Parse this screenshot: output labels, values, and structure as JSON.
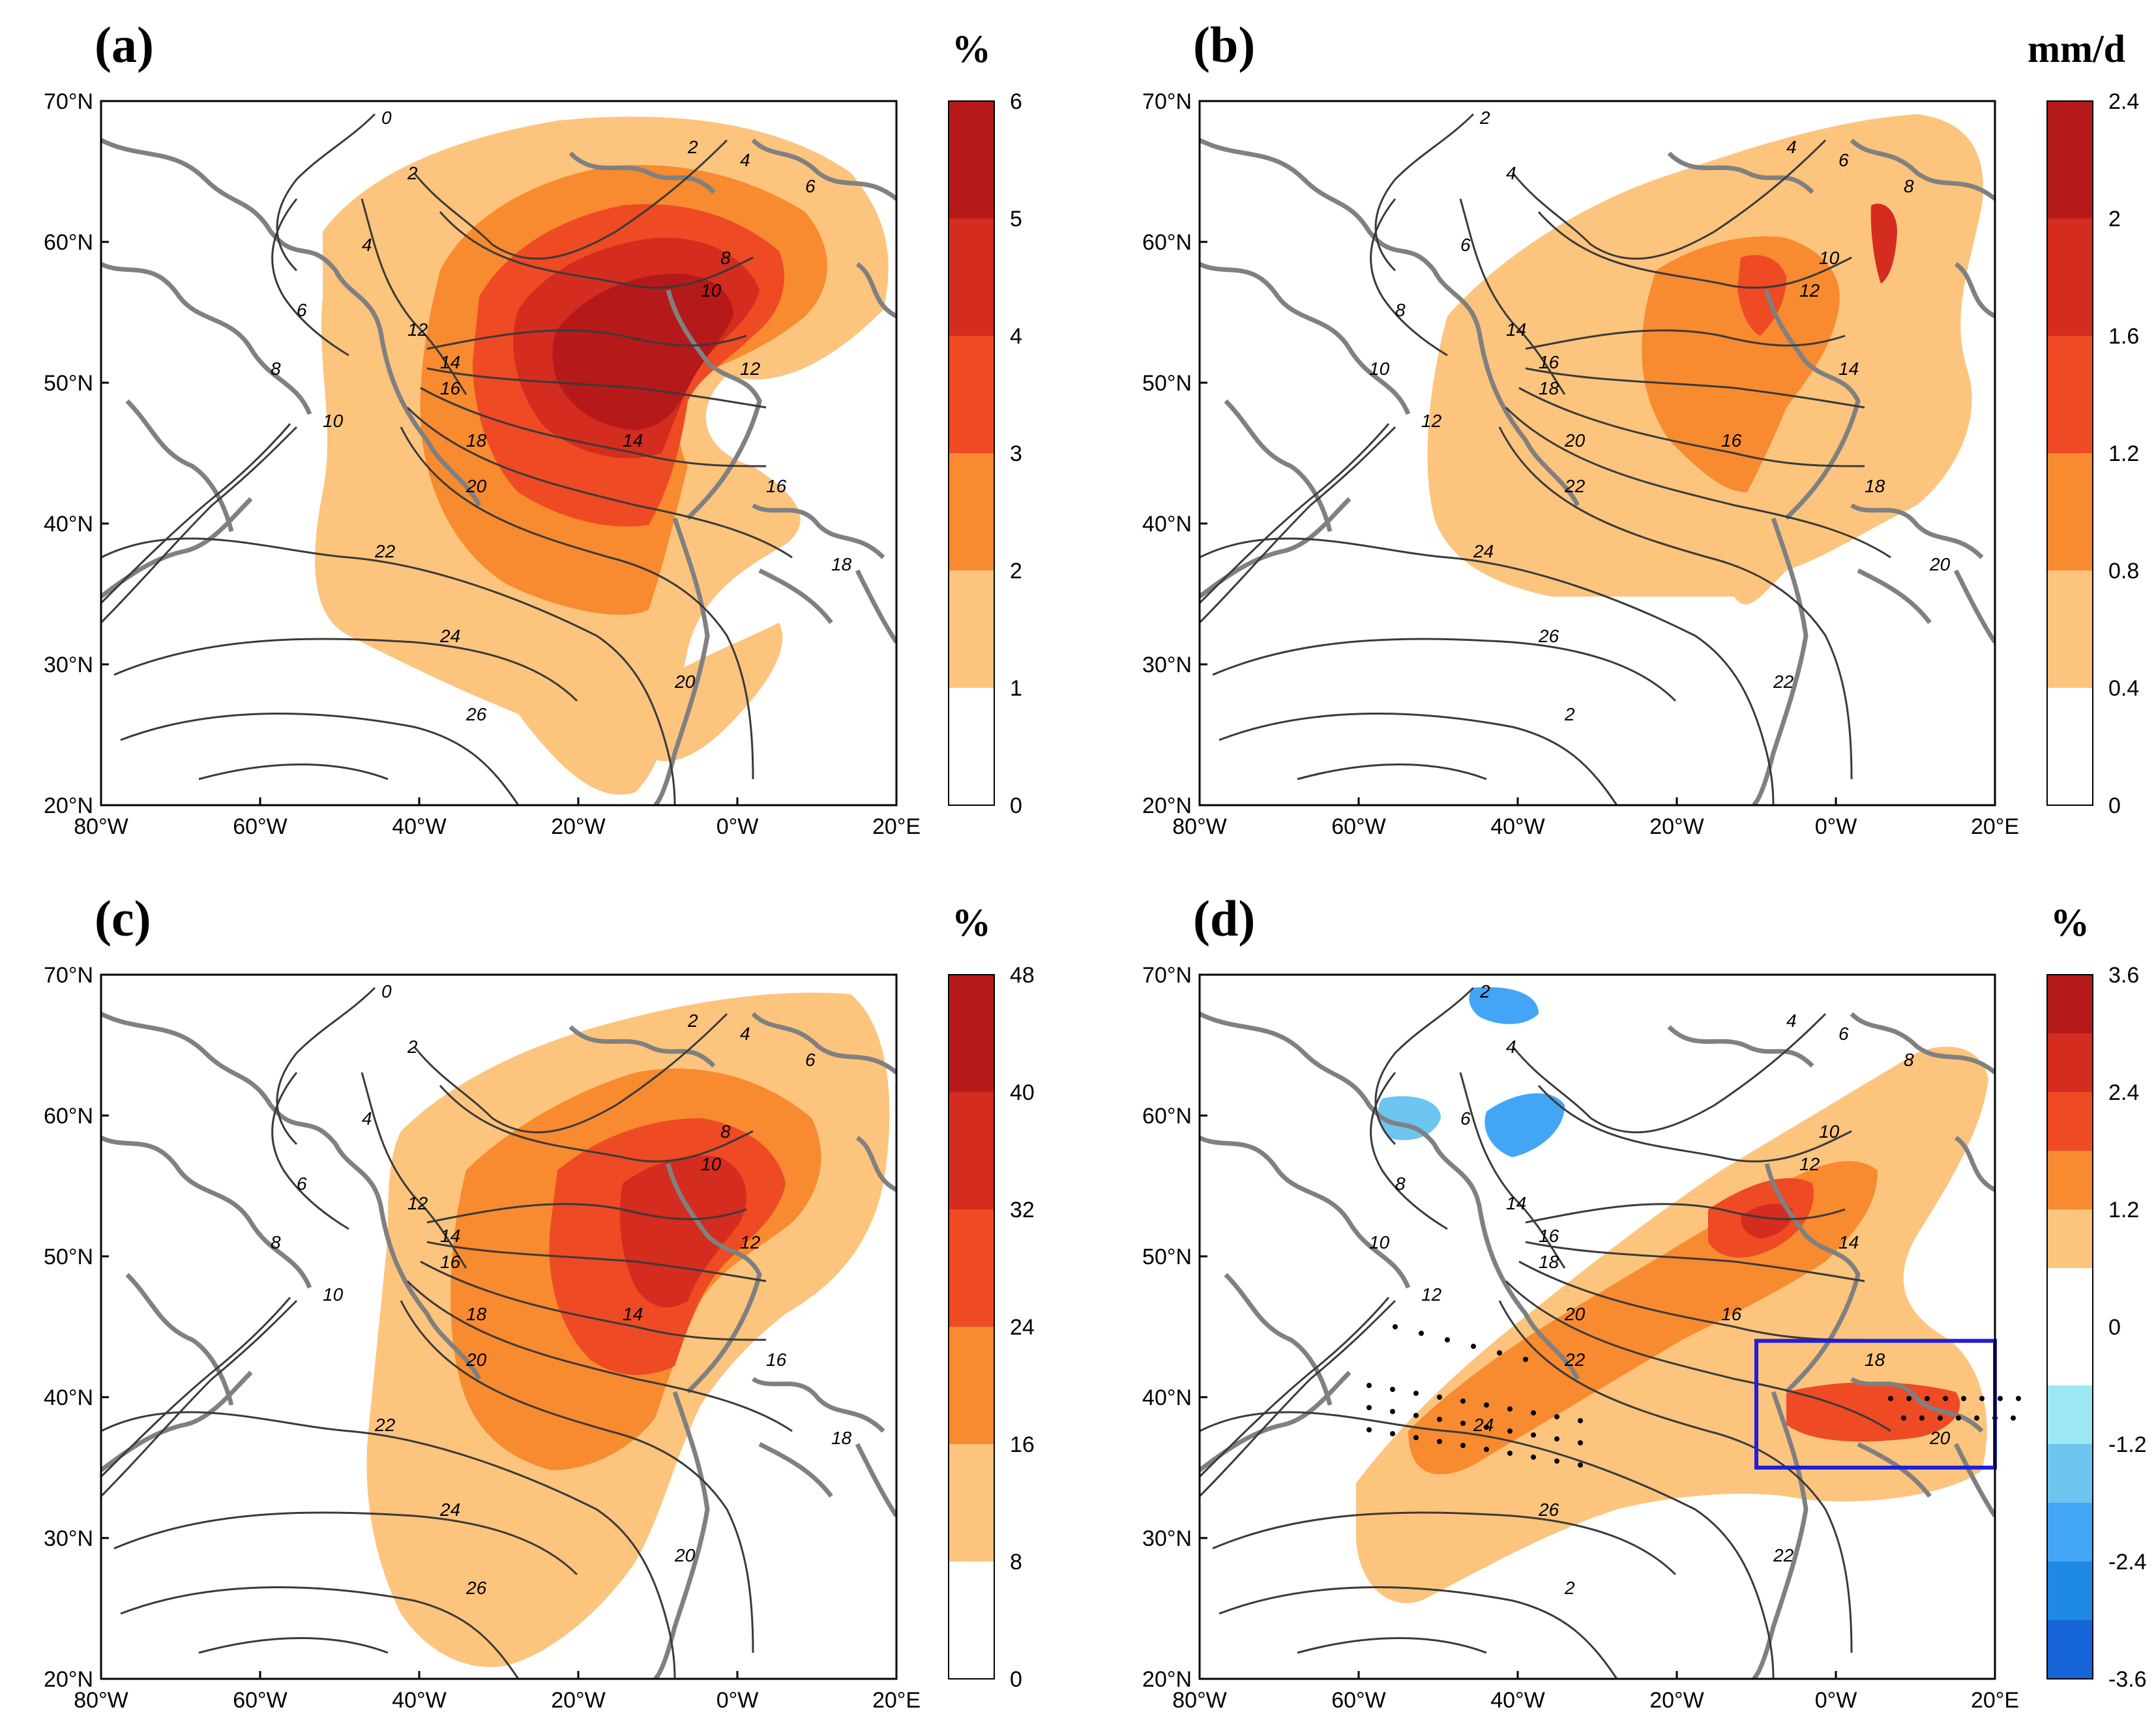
{
  "figure": {
    "panels": [
      {
        "id": "a",
        "label": "(a)",
        "unit": "%",
        "colorbar_ticks": [
          "0",
          "1",
          "2",
          "3",
          "4",
          "5",
          "6"
        ],
        "colorbar_colors": [
          "#ffffff",
          "#fdc47d",
          "#f88a2f",
          "#ee4a24",
          "#d42c1e",
          "#b5191a"
        ],
        "contour_labels": [
          "0",
          "2",
          "4",
          "6",
          "8",
          "10",
          "12",
          "14",
          "16",
          "18",
          "20",
          "22",
          "24",
          "26",
          "2",
          "4",
          "6",
          "8",
          "10",
          "12",
          "14",
          "16",
          "18",
          "20"
        ]
      },
      {
        "id": "b",
        "label": "(b)",
        "unit": "mm/d",
        "colorbar_ticks": [
          "0",
          "0.4",
          "0.8",
          "1.2",
          "1.6",
          "2",
          "2.4"
        ],
        "colorbar_colors": [
          "#ffffff",
          "#fdc47d",
          "#f88a2f",
          "#ee4a24",
          "#d42c1e",
          "#b5191a"
        ],
        "contour_labels": [
          "2",
          "4",
          "6",
          "8",
          "10",
          "12",
          "14",
          "16",
          "18",
          "20",
          "22",
          "24",
          "26",
          "2",
          "4",
          "6",
          "8",
          "10",
          "12",
          "14",
          "16",
          "18",
          "20",
          "22"
        ]
      },
      {
        "id": "c",
        "label": "(c)",
        "unit": "%",
        "colorbar_ticks": [
          "0",
          "8",
          "16",
          "24",
          "32",
          "40",
          "48"
        ],
        "colorbar_colors": [
          "#ffffff",
          "#fdc47d",
          "#f88a2f",
          "#ee4a24",
          "#d42c1e",
          "#b5191a"
        ],
        "contour_labels": [
          "0",
          "2",
          "4",
          "6",
          "8",
          "10",
          "12",
          "14",
          "16",
          "18",
          "20",
          "22",
          "24",
          "26",
          "2",
          "4",
          "6",
          "8",
          "10",
          "12",
          "14",
          "16",
          "18",
          "20"
        ]
      },
      {
        "id": "d",
        "label": "(d)",
        "unit": "%",
        "colorbar_ticks": [
          "-3.6",
          "-2.4",
          "-1.2",
          "0",
          "1.2",
          "2.4",
          "3.6"
        ],
        "colorbar_colors": [
          "#1565d8",
          "#1e88e5",
          "#42a5f5",
          "#6cc6f0",
          "#9be7f4",
          "#ffffff",
          "#ffffff",
          "#fdc47d",
          "#f88a2f",
          "#ee4a24",
          "#d42c1e",
          "#b5191a"
        ],
        "contour_labels": [
          "2",
          "4",
          "6",
          "8",
          "10",
          "12",
          "14",
          "16",
          "18",
          "20",
          "22",
          "24",
          "26",
          "2",
          "4",
          "6",
          "8",
          "10",
          "12",
          "14",
          "16",
          "18",
          "20",
          "22"
        ],
        "box_region": {
          "lon": [
            -10,
            20
          ],
          "lat": [
            35,
            44
          ],
          "color": "#1f1fd6"
        }
      }
    ],
    "x_tick_labels": [
      "80°W",
      "60°W",
      "40°W",
      "20°W",
      "0°W",
      "20°E"
    ],
    "y_tick_labels": [
      "20°N",
      "30°N",
      "40°N",
      "50°N",
      "60°N",
      "70°N"
    ],
    "lon_range": [
      -80,
      20
    ],
    "lat_range": [
      20,
      70
    ]
  }
}
